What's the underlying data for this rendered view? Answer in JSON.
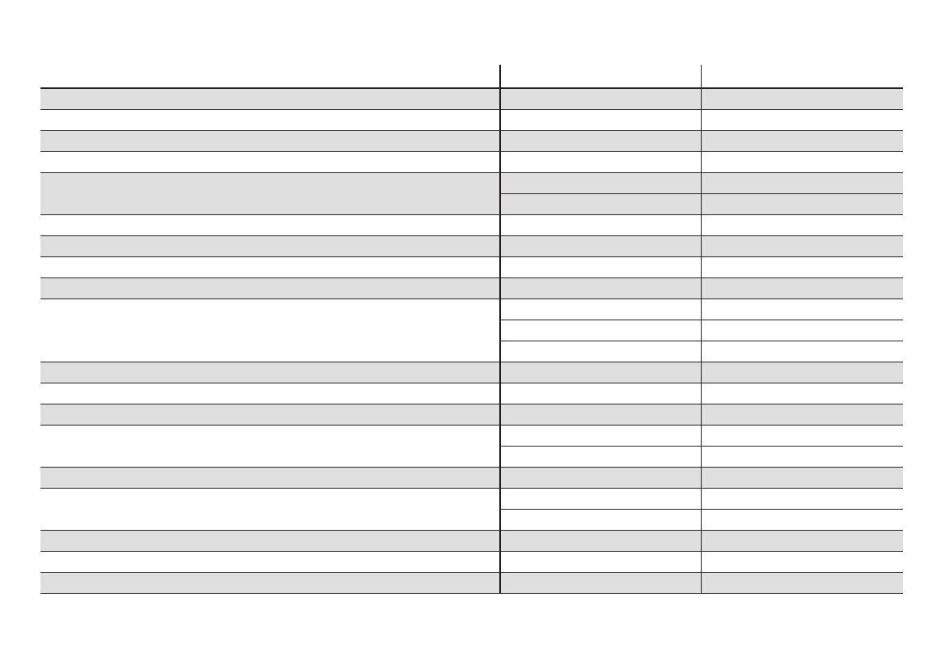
{
  "table": {
    "headers": [
      "",
      "",
      ""
    ],
    "row_shading": [
      "#dfdfdf",
      "#ffffff"
    ],
    "groups": [
      {
        "label": "",
        "sub_rows": [
          [
            "",
            ""
          ]
        ]
      },
      {
        "label": "",
        "sub_rows": [
          [
            "",
            ""
          ]
        ]
      },
      {
        "label": "",
        "sub_rows": [
          [
            "",
            ""
          ]
        ]
      },
      {
        "label": "",
        "sub_rows": [
          [
            "",
            ""
          ]
        ]
      },
      {
        "label": "",
        "sub_rows": [
          [
            "",
            ""
          ],
          [
            "",
            ""
          ]
        ]
      },
      {
        "label": "",
        "sub_rows": [
          [
            "",
            ""
          ]
        ]
      },
      {
        "label": "",
        "sub_rows": [
          [
            "",
            ""
          ]
        ]
      },
      {
        "label": "",
        "sub_rows": [
          [
            "",
            ""
          ]
        ]
      },
      {
        "label": "",
        "sub_rows": [
          [
            "",
            ""
          ]
        ]
      },
      {
        "label": "",
        "sub_rows": [
          [
            "",
            ""
          ],
          [
            "",
            ""
          ],
          [
            "",
            ""
          ]
        ]
      },
      {
        "label": "",
        "sub_rows": [
          [
            "",
            ""
          ]
        ]
      },
      {
        "label": "",
        "sub_rows": [
          [
            "",
            ""
          ]
        ]
      },
      {
        "label": "",
        "sub_rows": [
          [
            "",
            ""
          ]
        ]
      },
      {
        "label": "",
        "sub_rows": [
          [
            "",
            ""
          ],
          [
            "",
            ""
          ]
        ]
      },
      {
        "label": "",
        "sub_rows": [
          [
            "",
            ""
          ]
        ]
      },
      {
        "label": "",
        "sub_rows": [
          [
            "",
            ""
          ],
          [
            "",
            ""
          ]
        ]
      },
      {
        "label": "",
        "sub_rows": [
          [
            "",
            ""
          ]
        ]
      },
      {
        "label": "",
        "sub_rows": [
          [
            "",
            ""
          ]
        ]
      },
      {
        "label": "",
        "sub_rows": [
          [
            "",
            ""
          ]
        ]
      }
    ]
  }
}
